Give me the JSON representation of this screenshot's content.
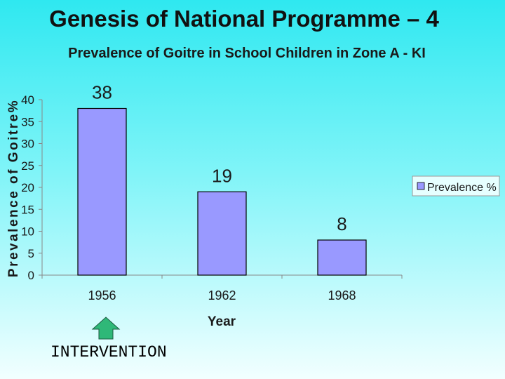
{
  "slide": {
    "title": "Genesis of National Programme – 4",
    "note": "INTERVENTION"
  },
  "chart_data": {
    "type": "bar",
    "title": "Prevalence of Goitre in School Children in Zone A - KI",
    "xlabel": "Year",
    "ylabel": "Prevalence of Goitre%",
    "categories": [
      "1956",
      "1962",
      "1968"
    ],
    "series": [
      {
        "name": "Prevalence %",
        "values": [
          38,
          19,
          8
        ],
        "color": "#9999ff"
      }
    ],
    "ylim": [
      0,
      40
    ],
    "yticks": [
      0,
      5,
      10,
      15,
      20,
      25,
      30,
      35,
      40
    ],
    "data_labels": [
      "38",
      "19",
      "8"
    ],
    "grid": false,
    "legend_position": "right",
    "annotation_arrow_color": "#2fb878"
  }
}
